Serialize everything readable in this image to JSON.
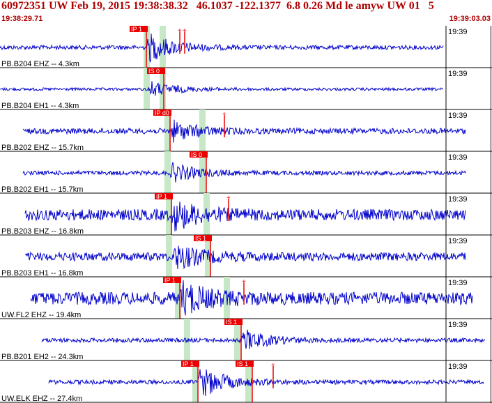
{
  "header": {
    "title": "60972351 UW Feb 19, 2015 19:38:38.32   46.1037 -122.1377  6.8 0.26 Md le amyw UW 01   5",
    "start_time": "19:38:29.71",
    "end_time": "19:39:03.03"
  },
  "minute_label": "19:39",
  "colors": {
    "header_text": "#b00000",
    "trace": "#0000cc",
    "pick": "#ee0000",
    "window": "#c6e8c6"
  },
  "traces": [
    {
      "label": "PB.B204 EHZ -- 4.3km",
      "x0": 0,
      "x1": 636,
      "amp": 3,
      "event_start": 210,
      "event_amp": 22,
      "picks": [
        {
          "x": 210,
          "text": "IP 1"
        }
      ],
      "windows": [
        210,
        233
      ],
      "marks": [
        258,
        265
      ]
    },
    {
      "label": "PB.B204 EH1 -- 4.3km",
      "x0": 0,
      "x1": 636,
      "amp": 2,
      "event_start": 212,
      "event_amp": 12,
      "picks": [
        {
          "x": 235,
          "text": "IS 0"
        }
      ],
      "windows": [
        210,
        233
      ],
      "marks": []
    },
    {
      "label": "PB.B202 EHZ -- 15.7km",
      "x0": 33,
      "x1": 668,
      "amp": 4,
      "event_start": 244,
      "event_amp": 15,
      "picks": [
        {
          "x": 244,
          "text": "IP d0"
        }
      ],
      "windows": [
        240,
        290
      ],
      "marks": [
        322
      ]
    },
    {
      "label": "PB.B202 EH1 -- 15.7km",
      "x0": 33,
      "x1": 668,
      "amp": 3,
      "event_start": 244,
      "event_amp": 14,
      "picks": [
        {
          "x": 296,
          "text": "IS 0"
        }
      ],
      "windows": [
        240,
        290
      ],
      "marks": []
    },
    {
      "label": "PB.B203 EHZ -- 16.8km",
      "x0": 36,
      "x1": 668,
      "amp": 8,
      "event_start": 246,
      "event_amp": 20,
      "picks": [
        {
          "x": 246,
          "text": "IP 1"
        }
      ],
      "windows": [
        242,
        296
      ],
      "marks": [
        328
      ]
    },
    {
      "label": "PB.B203 EH1 -- 16.8km",
      "x0": 36,
      "x1": 668,
      "amp": 6,
      "event_start": 248,
      "event_amp": 18,
      "picks": [
        {
          "x": 302,
          "text": "IS 1"
        }
      ],
      "windows": [
        242,
        298
      ],
      "marks": []
    },
    {
      "label": "UW.FL2 EHZ -- 19.4km",
      "x0": 44,
      "x1": 678,
      "amp": 9,
      "event_start": 258,
      "event_amp": 22,
      "picks": [
        {
          "x": 258,
          "text": "IP 1"
        }
      ],
      "windows": [
        255,
        325
      ],
      "marks": [
        350
      ]
    },
    {
      "label": "PB.B201 EH2 -- 24.3km",
      "x0": 60,
      "x1": 696,
      "amp": 3,
      "event_start": 346,
      "event_amp": 16,
      "picks": [
        {
          "x": 346,
          "text": "IS 1"
        }
      ],
      "windows": [
        268,
        340
      ],
      "marks": []
    },
    {
      "label": "UW.ELK EHZ -- 27.4km",
      "x0": 70,
      "x1": 694,
      "amp": 3,
      "event_start": 284,
      "event_amp": 24,
      "picks": [
        {
          "x": 284,
          "text": "IP 1"
        },
        {
          "x": 362,
          "text": "IS 1"
        }
      ],
      "windows": [
        280,
        356
      ],
      "marks": [
        392
      ]
    }
  ]
}
